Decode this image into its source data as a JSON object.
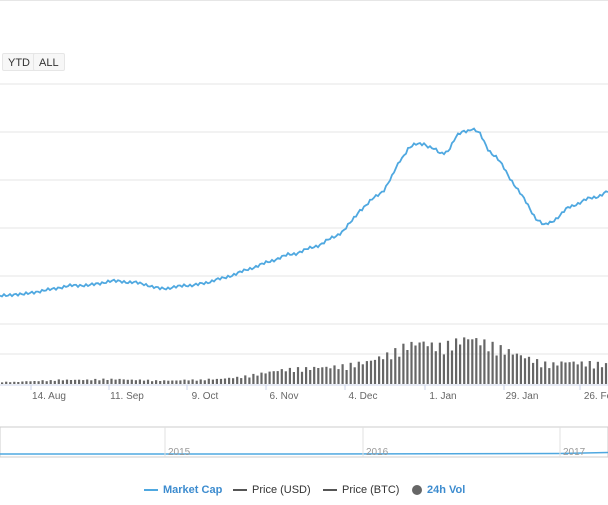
{
  "range_buttons": [
    "YTD",
    "ALL"
  ],
  "chart_data": {
    "type": "line",
    "title": "",
    "xlabel": "",
    "ylabel": "",
    "x_tick_labels": [
      "14. Aug",
      "11. Sep",
      "9. Oct",
      "6. Nov",
      "4. Dec",
      "1. Jan",
      "29. Jan",
      "26. Fe"
    ],
    "navigator_labels": [
      "2015",
      "2016",
      "2017"
    ],
    "grid": true,
    "legend_position": "bottom-center",
    "series": [
      {
        "name": "Market Cap",
        "color": "#4fa8e0",
        "values": [
          3,
          3,
          4,
          4,
          5,
          6,
          7,
          8,
          9,
          10,
          10,
          10,
          11,
          12,
          13,
          13,
          12,
          12,
          11,
          9,
          8,
          8,
          9,
          10,
          10,
          11,
          12,
          14,
          15,
          17,
          19,
          21,
          23,
          25,
          27,
          29,
          31,
          32,
          34,
          36,
          38,
          41,
          44,
          48,
          54,
          62,
          66,
          71,
          76,
          84,
          96,
          104,
          106,
          108,
          104,
          100,
          103,
          111,
          116,
          118,
          113,
          104,
          98,
          90,
          82,
          73,
          65,
          56,
          51,
          54,
          58,
          63,
          66,
          68,
          70,
          72,
          74
        ],
        "note_values": "relative index (0-120), axis values not printed"
      },
      {
        "name": "24h Vol",
        "color": "#555555",
        "values": [
          3,
          3,
          3,
          4,
          4,
          5,
          5,
          6,
          6,
          6,
          6,
          6,
          7,
          7,
          7,
          7,
          6,
          6,
          6,
          5,
          5,
          5,
          5,
          6,
          6,
          6,
          7,
          7,
          8,
          9,
          10,
          12,
          14,
          16,
          18,
          20,
          21,
          22,
          22,
          23,
          24,
          24,
          25,
          26,
          28,
          30,
          32,
          36,
          40,
          44,
          50,
          56,
          58,
          60,
          56,
          54,
          56,
          60,
          64,
          66,
          62,
          58,
          54,
          50,
          46,
          42,
          38,
          34,
          30,
          28,
          30,
          32,
          31,
          30,
          30,
          29,
          28
        ]
      }
    ],
    "legend": [
      {
        "label": "Market Cap",
        "marker": "line",
        "color": "#4fa8e0"
      },
      {
        "label": "Price (USD)",
        "marker": "line",
        "color": "#555555"
      },
      {
        "label": "Price (BTC)",
        "marker": "line",
        "color": "#555555"
      },
      {
        "label": "24h Vol",
        "marker": "dot",
        "color": "#555555"
      }
    ]
  }
}
